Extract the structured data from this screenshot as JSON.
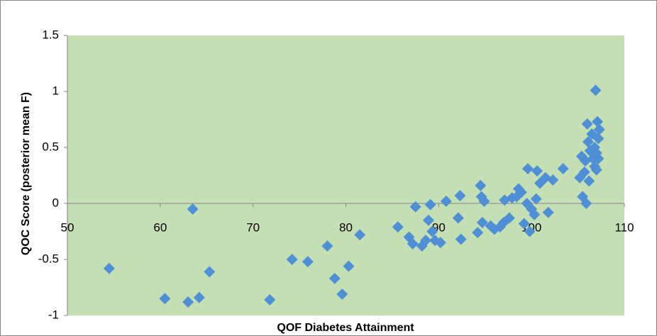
{
  "chart_data": {
    "type": "scatter",
    "x_label": "QOF Diabetes Attainment",
    "y_label": "QOC Score (posterior mean F)",
    "color": "#4f8fd6",
    "plot_background": "#c4dfb4",
    "x": [
      54.5,
      60.5,
      63.0,
      63.5,
      64.2,
      65.3,
      71.8,
      74.2,
      75.9,
      78.0,
      78.8,
      79.6,
      80.3,
      81.5,
      85.6,
      86.8,
      87.2,
      87.5,
      88.2,
      88.6,
      88.9,
      89.1,
      89.3,
      89.6,
      90.2,
      90.8,
      92.1,
      92.3,
      92.4,
      94.2,
      94.5,
      94.6,
      94.7,
      94.9,
      95.6,
      96.0,
      96.6,
      97.0,
      97.1,
      97.6,
      97.9,
      98.4,
      98.6,
      98.9,
      99.2,
      99.5,
      99.6,
      99.8,
      100.0,
      100.3,
      100.5,
      100.6,
      100.9,
      101.5,
      101.8,
      102.3,
      103.4,
      105.2,
      105.4,
      105.5,
      105.7,
      105.8,
      105.9,
      106.0,
      106.1,
      106.2,
      106.3,
      106.5,
      106.6,
      106.8,
      106.9,
      107.0,
      107.1,
      107.2,
      107.3,
      107.0,
      106.8,
      107.2
    ],
    "values": [
      -0.58,
      -0.85,
      -0.88,
      -0.05,
      -0.84,
      -0.61,
      -0.86,
      -0.5,
      -0.52,
      -0.38,
      -0.67,
      -0.81,
      -0.56,
      -0.28,
      -0.21,
      -0.3,
      -0.36,
      -0.03,
      -0.38,
      -0.33,
      -0.15,
      -0.01,
      -0.25,
      -0.33,
      -0.35,
      0.02,
      -0.13,
      0.07,
      -0.32,
      -0.26,
      0.16,
      0.06,
      -0.17,
      0.02,
      -0.2,
      -0.23,
      -0.21,
      -0.17,
      0.03,
      -0.13,
      0.05,
      0.06,
      0.13,
      0.1,
      -0.18,
      0.0,
      0.31,
      -0.25,
      -0.05,
      -0.1,
      0.04,
      0.29,
      0.18,
      0.23,
      -0.08,
      0.21,
      0.31,
      0.23,
      0.42,
      0.06,
      0.28,
      0.38,
      0.0,
      0.71,
      0.55,
      0.2,
      0.47,
      0.62,
      0.4,
      0.5,
      1.01,
      0.3,
      0.73,
      0.58,
      0.66,
      0.45,
      0.33,
      0.4
    ],
    "xlim": [
      50,
      110
    ],
    "xticks": [
      50,
      60,
      70,
      80,
      90,
      100,
      110
    ],
    "ylim": [
      -1,
      1.5
    ],
    "yticks": [
      -1,
      -0.5,
      0,
      0.5,
      1,
      1.5
    ]
  }
}
